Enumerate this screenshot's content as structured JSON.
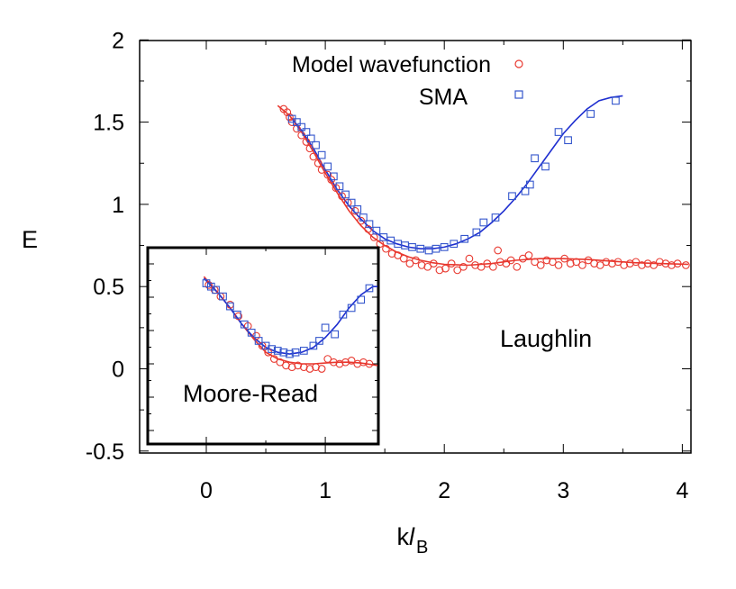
{
  "chart_data": {
    "type": "scatter",
    "title": "",
    "xlabel": "k",
    "xlabel_italic": "l",
    "xlabel_sub": "B",
    "ylabel": "E",
    "xlim": [
      -0.5,
      4.05
    ],
    "ylim": [
      -0.5,
      2
    ],
    "xticks": [
      0,
      1,
      2,
      3,
      4
    ],
    "xtick_labels": [
      "0",
      "1",
      "2",
      "3",
      "4"
    ],
    "yticks": [
      -0.5,
      0,
      0.5,
      1,
      1.5,
      2
    ],
    "ytick_labels": [
      "-0.5",
      "0",
      "0.5",
      "1",
      "1.5",
      "2"
    ],
    "grid": false,
    "legend_position": "top-right",
    "series": [
      {
        "name": "Model wavefunction",
        "marker": "circle",
        "color": "#e8382f",
        "x": [
          0.65,
          0.68,
          0.7,
          0.72,
          0.76,
          0.8,
          0.84,
          0.87,
          0.9,
          0.94,
          0.97,
          1.02,
          1.05,
          1.09,
          1.14,
          1.19,
          1.25,
          1.3,
          1.36,
          1.41,
          1.46,
          1.51,
          1.56,
          1.61,
          1.66,
          1.71,
          1.76,
          1.81,
          1.86,
          1.91,
          1.96,
          2.01,
          2.06,
          2.11,
          2.16,
          2.21,
          2.26,
          2.31,
          2.36,
          2.41,
          2.45,
          2.47,
          2.52,
          2.56,
          2.61,
          2.66,
          2.71,
          2.76,
          2.81,
          2.86,
          2.91,
          2.96,
          3.01,
          3.06,
          3.11,
          3.16,
          3.21,
          3.26,
          3.31,
          3.36,
          3.41,
          3.46,
          3.51,
          3.56,
          3.61,
          3.66,
          3.71,
          3.76,
          3.81,
          3.86,
          3.91,
          3.96,
          4.03
        ],
        "y": [
          1.58,
          1.56,
          1.53,
          1.5,
          1.46,
          1.42,
          1.38,
          1.34,
          1.29,
          1.25,
          1.21,
          1.18,
          1.15,
          1.1,
          1.05,
          1.01,
          0.96,
          0.9,
          0.85,
          0.8,
          0.76,
          0.73,
          0.7,
          0.69,
          0.67,
          0.64,
          0.66,
          0.63,
          0.62,
          0.64,
          0.6,
          0.61,
          0.64,
          0.6,
          0.62,
          0.67,
          0.63,
          0.62,
          0.64,
          0.62,
          0.72,
          0.65,
          0.64,
          0.66,
          0.62,
          0.67,
          0.69,
          0.65,
          0.63,
          0.66,
          0.65,
          0.63,
          0.67,
          0.64,
          0.65,
          0.63,
          0.66,
          0.64,
          0.63,
          0.65,
          0.64,
          0.65,
          0.63,
          0.64,
          0.65,
          0.63,
          0.64,
          0.63,
          0.65,
          0.64,
          0.63,
          0.64,
          0.63
        ]
      },
      {
        "name": "SMA",
        "marker": "square",
        "color": "#3355cc",
        "x": [
          0.72,
          0.76,
          0.8,
          0.84,
          0.88,
          0.92,
          0.97,
          1.02,
          1.07,
          1.12,
          1.17,
          1.22,
          1.27,
          1.32,
          1.37,
          1.43,
          1.49,
          1.55,
          1.61,
          1.67,
          1.73,
          1.8,
          1.87,
          1.93,
          2.0,
          2.08,
          2.17,
          2.27,
          2.33,
          2.43,
          2.57,
          2.68,
          2.72,
          2.76,
          2.85,
          2.96,
          3.04,
          3.23,
          3.44
        ],
        "y": [
          1.52,
          1.5,
          1.47,
          1.44,
          1.4,
          1.36,
          1.3,
          1.23,
          1.17,
          1.11,
          1.06,
          1.01,
          0.97,
          0.92,
          0.88,
          0.84,
          0.8,
          0.78,
          0.76,
          0.75,
          0.74,
          0.73,
          0.72,
          0.73,
          0.74,
          0.76,
          0.79,
          0.83,
          0.89,
          0.92,
          1.05,
          1.08,
          1.12,
          1.28,
          1.23,
          1.44,
          1.39,
          1.55,
          1.63
        ]
      }
    ],
    "fit_curves": [
      {
        "name": "Model wavefunction fit",
        "color": "#e8382f",
        "x": [
          0.6,
          0.7,
          0.8,
          0.9,
          1.0,
          1.1,
          1.2,
          1.3,
          1.4,
          1.5,
          1.6,
          1.7,
          1.8,
          1.9,
          2.0,
          2.2,
          2.4,
          2.6,
          2.8,
          3.0,
          3.2,
          3.4,
          3.6,
          3.8,
          4.05
        ],
        "y": [
          1.6,
          1.54,
          1.44,
          1.32,
          1.19,
          1.07,
          0.96,
          0.87,
          0.8,
          0.75,
          0.71,
          0.68,
          0.66,
          0.645,
          0.635,
          0.63,
          0.64,
          0.66,
          0.67,
          0.67,
          0.665,
          0.655,
          0.645,
          0.64,
          0.635
        ]
      },
      {
        "name": "SMA fit",
        "color": "#1f2fd0",
        "x": [
          0.72,
          0.8,
          0.9,
          1.0,
          1.1,
          1.2,
          1.3,
          1.4,
          1.5,
          1.6,
          1.7,
          1.8,
          1.9,
          2.0,
          2.1,
          2.2,
          2.3,
          2.4,
          2.5,
          2.6,
          2.7,
          2.8,
          2.9,
          3.0,
          3.1,
          3.2,
          3.3,
          3.4,
          3.5
        ],
        "y": [
          1.52,
          1.45,
          1.34,
          1.21,
          1.09,
          0.99,
          0.91,
          0.84,
          0.79,
          0.76,
          0.74,
          0.73,
          0.73,
          0.74,
          0.76,
          0.79,
          0.83,
          0.89,
          0.96,
          1.04,
          1.13,
          1.23,
          1.33,
          1.43,
          1.51,
          1.58,
          1.63,
          1.65,
          1.66
        ]
      }
    ],
    "inset": {
      "label": "Moore-Read",
      "x_range": [
        -0.05,
        1.45
      ],
      "series": [
        {
          "name": "Model wavefunction",
          "marker": "circle",
          "color": "#e8382f",
          "x": [
            0.02,
            0.07,
            0.12,
            0.2,
            0.27,
            0.35,
            0.42,
            0.47,
            0.52,
            0.57,
            0.62,
            0.67,
            0.72,
            0.77,
            0.82,
            0.87,
            0.92,
            0.97,
            1.02,
            1.07,
            1.12,
            1.17,
            1.22,
            1.27,
            1.32,
            1.37
          ],
          "y": [
            0.51,
            0.48,
            0.44,
            0.39,
            0.32,
            0.26,
            0.2,
            0.14,
            0.1,
            0.06,
            0.04,
            0.02,
            0.01,
            0.02,
            0.01,
            0.0,
            0.01,
            0.0,
            0.06,
            0.04,
            0.03,
            0.04,
            0.05,
            0.03,
            0.04,
            0.03
          ]
        },
        {
          "name": "SMA",
          "marker": "square",
          "color": "#3355cc",
          "x": [
            0.0,
            0.04,
            0.08,
            0.14,
            0.2,
            0.26,
            0.32,
            0.38,
            0.44,
            0.5,
            0.55,
            0.6,
            0.65,
            0.7,
            0.75,
            0.82,
            0.9,
            0.95,
            1.0,
            1.08,
            1.15,
            1.22,
            1.3,
            1.37
          ],
          "y": [
            0.52,
            0.5,
            0.48,
            0.44,
            0.38,
            0.33,
            0.27,
            0.22,
            0.17,
            0.14,
            0.12,
            0.11,
            0.1,
            0.09,
            0.1,
            0.11,
            0.14,
            0.17,
            0.25,
            0.21,
            0.33,
            0.37,
            0.42,
            0.49
          ]
        }
      ],
      "fit_curves": [
        {
          "name": "Model wavefunction fit",
          "color": "#e8382f",
          "x": [
            -0.02,
            0.1,
            0.2,
            0.3,
            0.4,
            0.5,
            0.6,
            0.7,
            0.8,
            0.9,
            1.0,
            1.1,
            1.2,
            1.3,
            1.45
          ],
          "y": [
            0.56,
            0.46,
            0.37,
            0.27,
            0.18,
            0.1,
            0.06,
            0.04,
            0.03,
            0.03,
            0.035,
            0.04,
            0.04,
            0.035,
            0.02
          ]
        },
        {
          "name": "SMA fit",
          "color": "#1f2fd0",
          "x": [
            -0.02,
            0.1,
            0.2,
            0.3,
            0.4,
            0.5,
            0.6,
            0.7,
            0.8,
            0.9,
            1.0,
            1.1,
            1.2,
            1.3,
            1.4,
            1.45
          ],
          "y": [
            0.55,
            0.46,
            0.37,
            0.27,
            0.19,
            0.13,
            0.1,
            0.09,
            0.1,
            0.13,
            0.19,
            0.27,
            0.37,
            0.45,
            0.5,
            0.5
          ]
        }
      ]
    },
    "annotations": [
      "Laughlin",
      "Moore-Read"
    ]
  }
}
